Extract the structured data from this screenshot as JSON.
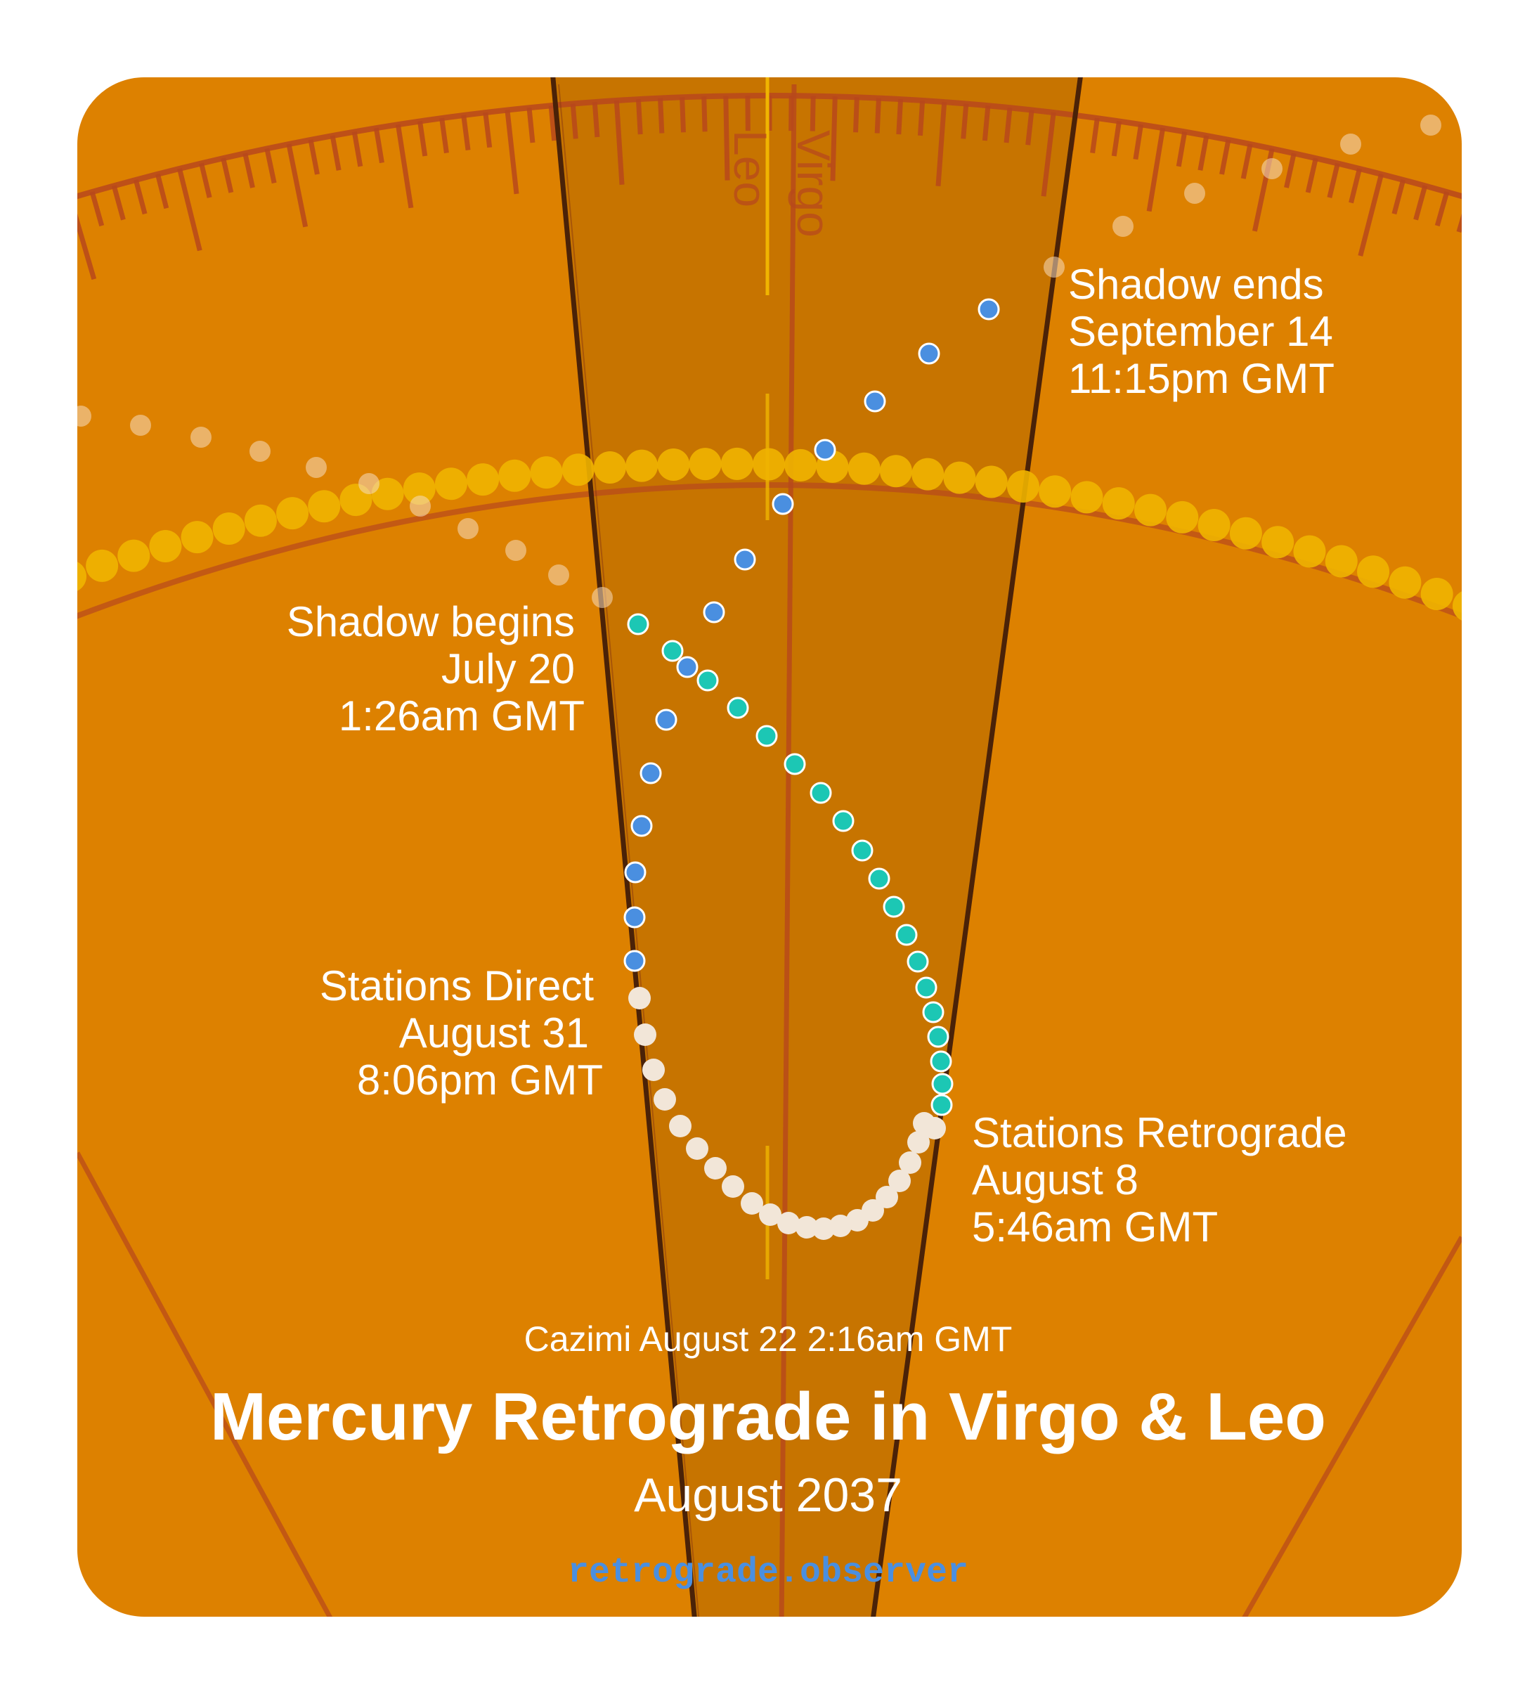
{
  "title": "Mercury Retrograde in Virgo & Leo",
  "subtitle": "August 2037",
  "cazimi": "Cazimi August 22 2:16am GMT",
  "website": "retrograde.observer",
  "signs": {
    "left": "Leo",
    "right": "Virgo"
  },
  "events": {
    "shadow_ends": {
      "line1": "Shadow ends",
      "line2": "September 14",
      "line3": "11:15pm GMT"
    },
    "shadow_begins": {
      "line1": "Shadow begins",
      "line2": "July 20",
      "line3": "1:26am GMT"
    },
    "stations_direct": {
      "line1": "Stations Direct",
      "line2": "August 31",
      "line3": "8:06pm GMT"
    },
    "stations_retrograde": {
      "line1": "Stations Retrograde",
      "line2": "August 8",
      "line3": "5:46am GMT"
    }
  },
  "colors": {
    "background": "#dd8100",
    "band": "#c77400",
    "red_line": "#b8481c",
    "sun_dot": "#f0b400",
    "pre_shadow": "#1cc7b4",
    "retrograde": "#f2e6d8",
    "post_shadow": "#4a8fe0"
  }
}
